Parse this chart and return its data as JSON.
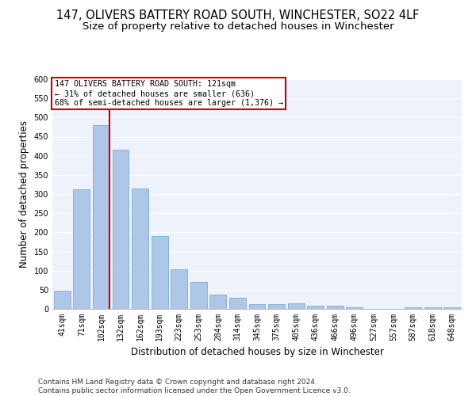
{
  "title": "147, OLIVERS BATTERY ROAD SOUTH, WINCHESTER, SO22 4LF",
  "subtitle": "Size of property relative to detached houses in Winchester",
  "xlabel": "Distribution of detached houses by size in Winchester",
  "ylabel": "Number of detached properties",
  "categories": [
    "41sqm",
    "71sqm",
    "102sqm",
    "132sqm",
    "162sqm",
    "193sqm",
    "223sqm",
    "253sqm",
    "284sqm",
    "314sqm",
    "345sqm",
    "375sqm",
    "405sqm",
    "436sqm",
    "466sqm",
    "496sqm",
    "527sqm",
    "557sqm",
    "587sqm",
    "618sqm",
    "648sqm"
  ],
  "values": [
    47,
    312,
    480,
    415,
    315,
    190,
    103,
    70,
    37,
    30,
    13,
    13,
    15,
    9,
    8,
    5,
    1,
    0,
    5,
    4,
    4
  ],
  "bar_color": "#aec6e8",
  "bar_edge_color": "#7aaed0",
  "vline_color": "#cc0000",
  "annotation_text": "147 OLIVERS BATTERY ROAD SOUTH: 121sqm\n← 31% of detached houses are smaller (636)\n68% of semi-detached houses are larger (1,376) →",
  "annotation_box_color": "#cc0000",
  "ylim": [
    0,
    600
  ],
  "yticks": [
    0,
    50,
    100,
    150,
    200,
    250,
    300,
    350,
    400,
    450,
    500,
    550,
    600
  ],
  "background_color": "#eef2fa",
  "footer": "Contains HM Land Registry data © Crown copyright and database right 2024.\nContains public sector information licensed under the Open Government Licence v3.0.",
  "title_fontsize": 10.5,
  "subtitle_fontsize": 9.5,
  "xlabel_fontsize": 8.5,
  "ylabel_fontsize": 8.5,
  "tick_fontsize": 7,
  "footer_fontsize": 6.5
}
